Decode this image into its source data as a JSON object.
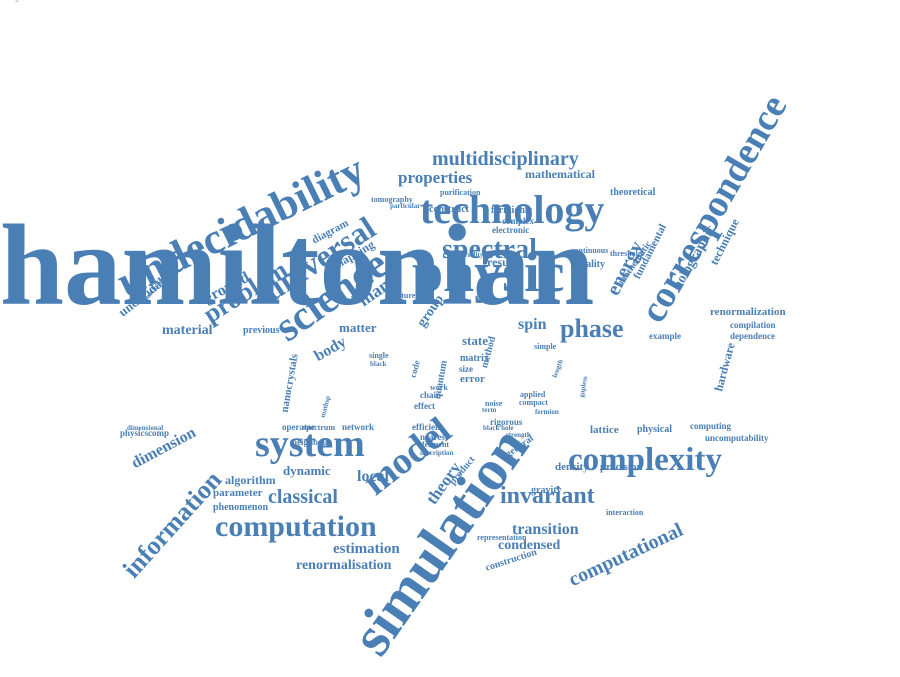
{
  "palette": {
    "word_color": "#4a7fb5",
    "background": "#ffffff"
  },
  "words": [
    "hamiltonian",
    "simulation",
    "correspondence",
    "undecidability",
    "physic",
    "technology",
    "system",
    "complexity",
    "model",
    "science",
    "computation",
    "spectral",
    "universal",
    "multidisciplinary",
    "problem",
    "invariant",
    "information",
    "phase",
    "properties",
    "computational",
    "undecidable",
    "classical",
    "energy",
    "material",
    "holographic",
    "renormalization",
    "dimension",
    "estimation",
    "transition",
    "renormalisation",
    "theory",
    "local",
    "condensed",
    "spin",
    "many",
    "matter",
    "ground",
    "lattice",
    "dynamic",
    "mathematical",
    "state",
    "result",
    "body",
    "duality",
    "precision",
    "density",
    "algorithm",
    "physical",
    "technique",
    "hardware",
    "parameter",
    "phenomenon",
    "mapping",
    "construction",
    "gravity",
    "group",
    "diagram",
    "error",
    "compilation",
    "dependence",
    "construct",
    "fermionic",
    "theoretical",
    "previous",
    "example",
    "physicscomp",
    "network",
    "efficient",
    "operator",
    "computing",
    "nanocrystals",
    "general",
    "product",
    "fundamental",
    "mathematic",
    "tomography",
    "purification",
    "electronic",
    "complex",
    "noise",
    "matrix",
    "size",
    "chain",
    "effect",
    "code",
    "interaction",
    "representation",
    "uncomputability",
    "single",
    "black",
    "spectrum",
    "neighbour",
    "nearest",
    "quantum",
    "applied",
    "compact",
    "work",
    "rigorous",
    "ferment",
    "description",
    "method",
    "feature",
    "simple",
    "universality",
    "particular",
    "dimensional",
    "mathematician",
    "mathsp",
    "continuous",
    "threshold",
    "term",
    "black hole",
    "gapless",
    "strength",
    "fermion",
    "length",
    "decay"
  ]
}
